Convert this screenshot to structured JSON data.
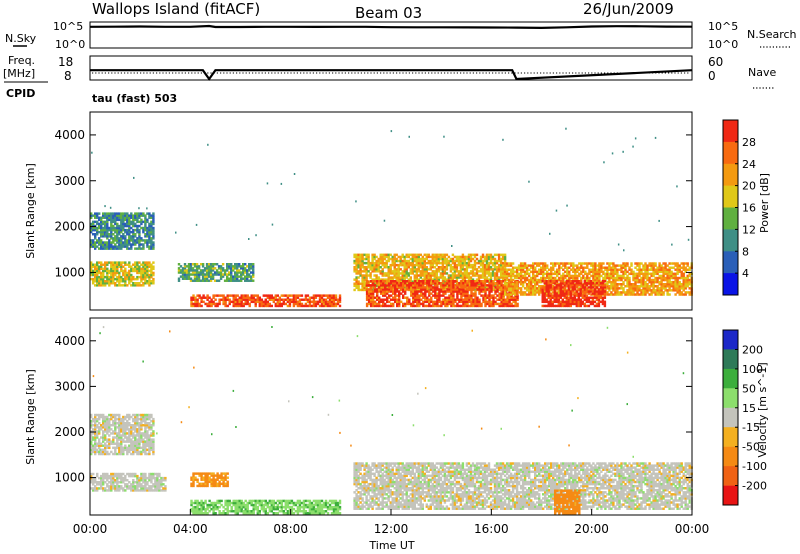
{
  "header": {
    "station": "Wallops Island (fitACF)",
    "beam": "Beam 03",
    "date": "26/Jun/2009"
  },
  "strip_labels": {
    "nsky": "N.Sky",
    "nsky_ticks": [
      "10^5",
      "10^0"
    ],
    "nsearch": "N.Search",
    "nsearch_ticks": [
      "10^5",
      "10^0"
    ],
    "freq": "Freq.",
    "freq_unit": "[MHz]",
    "freq_ticks": [
      "18",
      "8"
    ],
    "nave": "Nave",
    "nave_ticks": [
      "60",
      "0"
    ],
    "cpid_label": "CPID",
    "cpid_value": "tau (fast) 503"
  },
  "chart_data": [
    {
      "type": "line",
      "panel": "noise",
      "ylabel_left": "N.Sky",
      "ylabel_right": "N.Search",
      "scale": "log",
      "ylim": [
        1,
        100000
      ],
      "x": [
        "00:00",
        "01:00",
        "02:00",
        "03:00",
        "04:00",
        "04:45",
        "05:00",
        "06:00",
        "07:00",
        "08:00",
        "09:00",
        "10:00",
        "11:00",
        "12:00",
        "13:00",
        "14:00",
        "15:00",
        "16:00",
        "17:00",
        "18:00",
        "19:00",
        "20:00",
        "21:00",
        "22:00",
        "23:00",
        "24:00"
      ],
      "series": [
        {
          "values": [
            40000,
            42000,
            45000,
            40000,
            38000,
            60000,
            36000,
            35000,
            38000,
            40000,
            37000,
            40000,
            38000,
            32000,
            30000,
            30000,
            28000,
            27000,
            25000,
            22000,
            30000,
            45000,
            52000,
            50000,
            43000,
            42000
          ]
        }
      ]
    },
    {
      "type": "line",
      "panel": "frequency",
      "ylabel_left": "Freq. [MHz]",
      "ylabel_right": "Nave",
      "yticks_left": [
        "8",
        "18"
      ],
      "yticks_right": [
        "0",
        "60"
      ],
      "x": [
        "00:00",
        "04:30",
        "04:45",
        "05:00",
        "16:50",
        "17:00",
        "24:00"
      ],
      "series": [
        {
          "values": [
            12,
            12,
            8,
            12,
            12,
            8,
            12
          ]
        }
      ]
    },
    {
      "type": "heatmap",
      "panel": "power",
      "ylabel": "Slant Range [km]",
      "yticks": [
        "1000",
        "2000",
        "3000",
        "4000"
      ],
      "ylim": [
        180,
        4500
      ],
      "xlim": [
        "00:00",
        "24:00"
      ],
      "colorbar": {
        "label": "Power [dB]",
        "ticks": [
          "4",
          "8",
          "12",
          "16",
          "20",
          "24",
          "28"
        ],
        "colors": [
          "#0a14e6",
          "#2a5fb8",
          "#3f8f86",
          "#60b040",
          "#e0c818",
          "#f49a10",
          "#f86a10",
          "#f02814"
        ]
      },
      "regions": [
        {
          "t_start": "00:00",
          "t_end": "02:30",
          "range_km": [
            1500,
            2300
          ],
          "power_db": 10
        },
        {
          "t_start": "00:00",
          "t_end": "02:30",
          "range_km": [
            700,
            1200
          ],
          "power_db": 18
        },
        {
          "t_start": "03:30",
          "t_end": "06:30",
          "range_km": [
            800,
            1200
          ],
          "power_db": 12
        },
        {
          "t_start": "04:00",
          "t_end": "10:00",
          "range_km": [
            250,
            500
          ],
          "power_db": 28
        },
        {
          "t_start": "10:30",
          "t_end": "16:30",
          "range_km": [
            600,
            1400
          ],
          "power_db": 20
        },
        {
          "t_start": "11:00",
          "t_end": "17:00",
          "range_km": [
            250,
            800
          ],
          "power_db": 28
        },
        {
          "t_start": "16:30",
          "t_end": "24:00",
          "range_km": [
            500,
            1200
          ],
          "power_db": 22
        },
        {
          "t_start": "18:00",
          "t_end": "20:30",
          "range_km": [
            250,
            800
          ],
          "power_db": 30
        }
      ]
    },
    {
      "type": "heatmap",
      "panel": "velocity",
      "ylabel": "Slant Range [km]",
      "yticks": [
        "1000",
        "2000",
        "3000",
        "4000"
      ],
      "ylim": [
        180,
        4500
      ],
      "xlim": [
        "00:00",
        "24:00"
      ],
      "xlabel": "Time UT",
      "xticks": [
        "00:00",
        "04:00",
        "08:00",
        "12:00",
        "16:00",
        "20:00",
        "00:00"
      ],
      "colorbar": {
        "label": "Velocity [m s^-1]",
        "ticks": [
          "200",
          "100",
          "50",
          "15",
          "-15",
          "-50",
          "-100",
          "-200"
        ],
        "colors": [
          "#1c28c8",
          "#2e7a58",
          "#3cae3c",
          "#8cde6c",
          "#c4c4bc",
          "#f4b020",
          "#f58a14",
          "#f06214",
          "#e81414"
        ]
      },
      "regions": [
        {
          "t_start": "00:00",
          "t_end": "02:30",
          "range_km": [
            1500,
            2400
          ],
          "velocity_ms": 0
        },
        {
          "t_start": "00:00",
          "t_end": "03:00",
          "range_km": [
            700,
            1100
          ],
          "velocity_ms": 0
        },
        {
          "t_start": "04:00",
          "t_end": "05:30",
          "range_km": [
            800,
            1100
          ],
          "velocity_ms": -60
        },
        {
          "t_start": "04:00",
          "t_end": "10:00",
          "range_km": [
            200,
            500
          ],
          "velocity_ms": 40
        },
        {
          "t_start": "10:30",
          "t_end": "24:00",
          "range_km": [
            300,
            1300
          ],
          "velocity_ms": 0
        },
        {
          "t_start": "18:30",
          "t_end": "19:30",
          "range_km": [
            200,
            700
          ],
          "velocity_ms": -70
        }
      ]
    }
  ]
}
